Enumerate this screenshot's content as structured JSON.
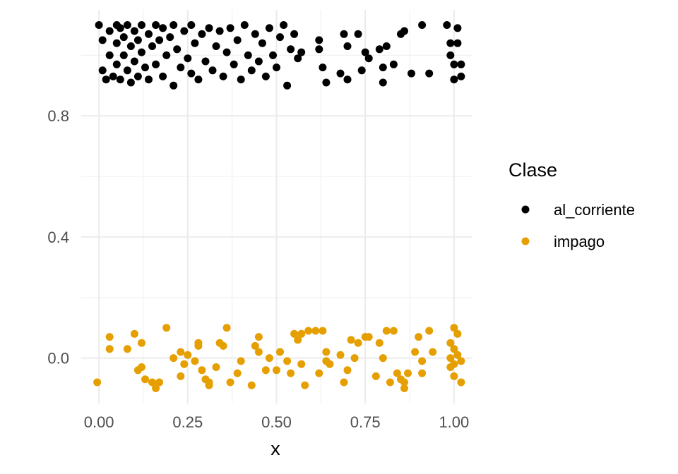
{
  "chart_data": {
    "type": "scatter",
    "xlabel": "x",
    "ylabel": "",
    "xlim": [
      -0.05,
      1.05
    ],
    "ylim": [
      -0.15,
      1.15
    ],
    "x_ticks": [
      0.0,
      0.25,
      0.5,
      0.75,
      1.0
    ],
    "x_tick_labels": [
      "0.00",
      "0.25",
      "0.50",
      "0.75",
      "1.00"
    ],
    "y_ticks": [
      0.0,
      0.4,
      0.8
    ],
    "y_tick_labels": [
      "0.0",
      "0.4",
      "0.8"
    ],
    "grid": true,
    "legend": {
      "title": "Clase",
      "placement": "right",
      "entries": [
        {
          "label": "al_corriente",
          "color": "#000000"
        },
        {
          "label": "impago",
          "color": "#E69F00"
        }
      ]
    },
    "series": [
      {
        "name": "al_corriente",
        "color": "#000000",
        "points": [
          [
            0.0,
            1.1
          ],
          [
            0.01,
            1.05
          ],
          [
            0.01,
            0.95
          ],
          [
            0.02,
            0.92
          ],
          [
            0.03,
            1.08
          ],
          [
            0.03,
            1.0
          ],
          [
            0.04,
            0.93
          ],
          [
            0.05,
            1.1
          ],
          [
            0.05,
            1.04
          ],
          [
            0.05,
            0.97
          ],
          [
            0.06,
            1.09
          ],
          [
            0.06,
            0.92
          ],
          [
            0.07,
            1.06
          ],
          [
            0.07,
            1.0
          ],
          [
            0.08,
            0.95
          ],
          [
            0.08,
            1.1
          ],
          [
            0.09,
            1.03
          ],
          [
            0.09,
            0.91
          ],
          [
            0.1,
            1.08
          ],
          [
            0.1,
            0.98
          ],
          [
            0.11,
            1.05
          ],
          [
            0.11,
            0.93
          ],
          [
            0.12,
            1.1
          ],
          [
            0.12,
            1.01
          ],
          [
            0.13,
            0.96
          ],
          [
            0.14,
            1.07
          ],
          [
            0.14,
            0.92
          ],
          [
            0.15,
            1.03
          ],
          [
            0.16,
            1.1
          ],
          [
            0.16,
            0.97
          ],
          [
            0.17,
            1.05
          ],
          [
            0.18,
            0.93
          ],
          [
            0.18,
            1.09
          ],
          [
            0.19,
            1.0
          ],
          [
            0.2,
            1.06
          ],
          [
            0.21,
            0.9
          ],
          [
            0.21,
            1.1
          ],
          [
            0.22,
            1.02
          ],
          [
            0.23,
            0.96
          ],
          [
            0.24,
            1.08
          ],
          [
            0.25,
            0.99
          ],
          [
            0.26,
            1.1
          ],
          [
            0.26,
            0.94
          ],
          [
            0.27,
            1.04
          ],
          [
            0.28,
            0.92
          ],
          [
            0.29,
            1.07
          ],
          [
            0.3,
            0.98
          ],
          [
            0.31,
            1.09
          ],
          [
            0.32,
            0.95
          ],
          [
            0.33,
            1.03
          ],
          [
            0.34,
            1.08
          ],
          [
            0.35,
            0.93
          ],
          [
            0.36,
            1.01
          ],
          [
            0.37,
            1.09
          ],
          [
            0.38,
            0.97
          ],
          [
            0.39,
            1.05
          ],
          [
            0.4,
            0.92
          ],
          [
            0.41,
            1.1
          ],
          [
            0.42,
            1.0
          ],
          [
            0.43,
            0.95
          ],
          [
            0.44,
            1.07
          ],
          [
            0.45,
            0.98
          ],
          [
            0.46,
            1.04
          ],
          [
            0.47,
            0.93
          ],
          [
            0.48,
            1.09
          ],
          [
            0.49,
            1.0
          ],
          [
            0.5,
            0.96
          ],
          [
            0.51,
            1.06
          ],
          [
            0.52,
            1.1
          ],
          [
            0.53,
            0.9
          ],
          [
            0.54,
            1.02
          ],
          [
            0.55,
            1.07
          ],
          [
            0.56,
            0.99
          ],
          [
            0.57,
            1.01
          ],
          [
            0.62,
            1.05
          ],
          [
            0.62,
            1.02
          ],
          [
            0.63,
            0.96
          ],
          [
            0.64,
            0.91
          ],
          [
            0.68,
            0.94
          ],
          [
            0.69,
            1.07
          ],
          [
            0.7,
            0.92
          ],
          [
            0.7,
            1.03
          ],
          [
            0.73,
            1.07
          ],
          [
            0.74,
            0.95
          ],
          [
            0.75,
            1.01
          ],
          [
            0.76,
            0.99
          ],
          [
            0.79,
            1.02
          ],
          [
            0.8,
            0.91
          ],
          [
            0.8,
            0.96
          ],
          [
            0.81,
            1.03
          ],
          [
            0.83,
            0.97
          ],
          [
            0.85,
            1.07
          ],
          [
            0.86,
            1.08
          ],
          [
            0.88,
            0.94
          ],
          [
            0.91,
            1.1
          ],
          [
            0.93,
            0.94
          ],
          [
            0.98,
            1.1
          ],
          [
            0.99,
            1.04
          ],
          [
            0.99,
            1.0
          ],
          [
            1.0,
            0.97
          ],
          [
            1.0,
            0.92
          ],
          [
            1.01,
            1.09
          ],
          [
            1.01,
            1.04
          ],
          [
            1.02,
            0.97
          ],
          [
            1.02,
            0.93
          ]
        ]
      },
      {
        "name": "impago",
        "color": "#E69F00",
        "points": [
          [
            -0.005,
            -0.08
          ],
          [
            0.03,
            0.07
          ],
          [
            0.03,
            0.03
          ],
          [
            0.08,
            0.03
          ],
          [
            0.1,
            0.08
          ],
          [
            0.11,
            -0.04
          ],
          [
            0.12,
            -0.03
          ],
          [
            0.12,
            0.05
          ],
          [
            0.13,
            -0.07
          ],
          [
            0.15,
            -0.08
          ],
          [
            0.16,
            -0.1
          ],
          [
            0.17,
            -0.08
          ],
          [
            0.19,
            0.1
          ],
          [
            0.21,
            0.0
          ],
          [
            0.23,
            0.02
          ],
          [
            0.23,
            -0.06
          ],
          [
            0.24,
            -0.02
          ],
          [
            0.25,
            0.01
          ],
          [
            0.27,
            -0.01
          ],
          [
            0.28,
            0.04
          ],
          [
            0.28,
            0.05
          ],
          [
            0.29,
            -0.04
          ],
          [
            0.3,
            -0.07
          ],
          [
            0.31,
            -0.08
          ],
          [
            0.31,
            -0.09
          ],
          [
            0.33,
            -0.03
          ],
          [
            0.34,
            0.05
          ],
          [
            0.35,
            0.04
          ],
          [
            0.36,
            0.1
          ],
          [
            0.37,
            -0.08
          ],
          [
            0.39,
            -0.05
          ],
          [
            0.4,
            -0.01
          ],
          [
            0.43,
            -0.09
          ],
          [
            0.44,
            0.04
          ],
          [
            0.45,
            0.07
          ],
          [
            0.45,
            0.02
          ],
          [
            0.47,
            -0.04
          ],
          [
            0.48,
            0.0
          ],
          [
            0.5,
            -0.04
          ],
          [
            0.51,
            0.02
          ],
          [
            0.53,
            -0.01
          ],
          [
            0.54,
            -0.05
          ],
          [
            0.55,
            0.08
          ],
          [
            0.56,
            0.06
          ],
          [
            0.57,
            -0.02
          ],
          [
            0.57,
            0.08
          ],
          [
            0.58,
            -0.09
          ],
          [
            0.59,
            0.09
          ],
          [
            0.61,
            0.09
          ],
          [
            0.62,
            -0.05
          ],
          [
            0.63,
            0.09
          ],
          [
            0.64,
            0.02
          ],
          [
            0.64,
            -0.01
          ],
          [
            0.65,
            -0.02
          ],
          [
            0.68,
            0.01
          ],
          [
            0.69,
            -0.08
          ],
          [
            0.7,
            -0.04
          ],
          [
            0.71,
            0.06
          ],
          [
            0.72,
            0.0
          ],
          [
            0.73,
            0.05
          ],
          [
            0.75,
            0.07
          ],
          [
            0.76,
            0.07
          ],
          [
            0.78,
            -0.06
          ],
          [
            0.79,
            0.05
          ],
          [
            0.8,
            0.0
          ],
          [
            0.81,
            0.09
          ],
          [
            0.82,
            -0.08
          ],
          [
            0.83,
            0.09
          ],
          [
            0.84,
            -0.05
          ],
          [
            0.85,
            -0.07
          ],
          [
            0.86,
            -0.1
          ],
          [
            0.86,
            -0.08
          ],
          [
            0.87,
            -0.05
          ],
          [
            0.89,
            0.02
          ],
          [
            0.9,
            0.07
          ],
          [
            0.91,
            -0.01
          ],
          [
            0.91,
            -0.05
          ],
          [
            0.93,
            0.09
          ],
          [
            0.94,
            0.02
          ],
          [
            0.99,
            0.05
          ],
          [
            0.99,
            0.0
          ],
          [
            0.99,
            -0.03
          ],
          [
            1.0,
            0.1
          ],
          [
            1.0,
            0.03
          ],
          [
            1.0,
            -0.06
          ],
          [
            1.0,
            -0.02
          ],
          [
            1.01,
            0.08
          ],
          [
            1.01,
            0.01
          ],
          [
            1.02,
            -0.08
          ],
          [
            1.02,
            -0.01
          ]
        ]
      }
    ]
  }
}
